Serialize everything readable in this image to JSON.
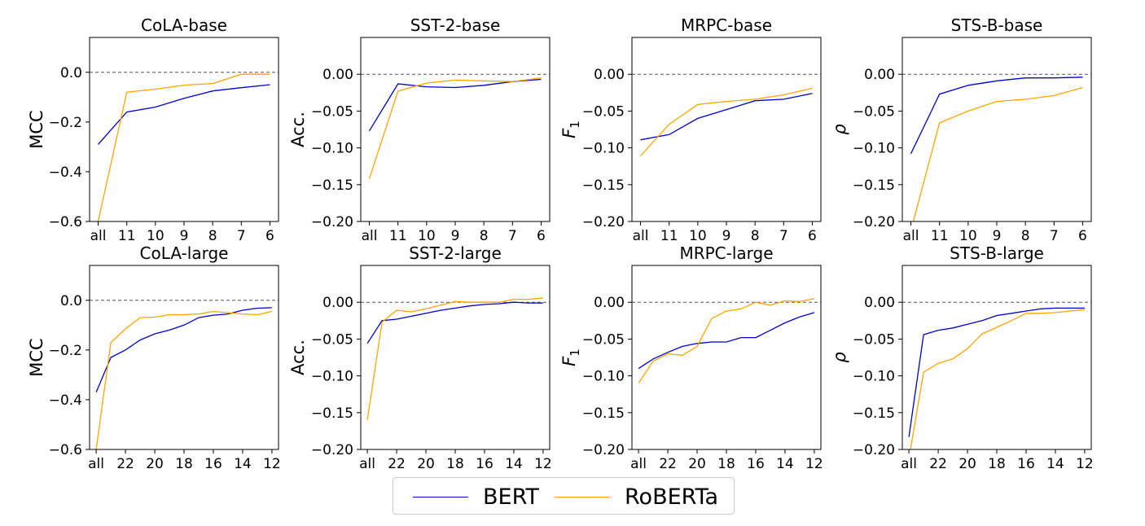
{
  "legend": {
    "entries": [
      {
        "name": "BERT",
        "color": "#0000cc"
      },
      {
        "name": "RoBERTa",
        "color": "#ffa500"
      }
    ]
  },
  "chart_data": [
    {
      "type": "line",
      "title": "CoLA-base",
      "ylabel": "MCC",
      "ylim": [
        -0.6,
        0.14
      ],
      "yticks": [
        -0.6,
        -0.4,
        -0.2,
        0.0
      ],
      "ytick_labels": [
        "−0.6",
        "−0.4",
        "−0.2",
        "0.0"
      ],
      "categories": [
        "all",
        "11",
        "10",
        "9",
        "8",
        "7",
        "6"
      ],
      "series": [
        {
          "name": "BERT",
          "values": [
            -0.29,
            -0.16,
            -0.14,
            -0.105,
            -0.075,
            -0.062,
            -0.05
          ]
        },
        {
          "name": "RoBERTa",
          "values": [
            -0.6,
            -0.08,
            -0.068,
            -0.052,
            -0.045,
            -0.008,
            -0.008
          ]
        }
      ]
    },
    {
      "type": "line",
      "title": "SST-2-base",
      "ylabel": "Acc.",
      "ylim": [
        -0.2,
        0.05
      ],
      "yticks": [
        -0.2,
        -0.15,
        -0.1,
        -0.05,
        0.0
      ],
      "ytick_labels": [
        "−0.20",
        "−0.15",
        "−0.10",
        "−0.05",
        "0.00"
      ],
      "categories": [
        "all",
        "11",
        "10",
        "9",
        "8",
        "7",
        "6"
      ],
      "series": [
        {
          "name": "BERT",
          "values": [
            -0.077,
            -0.013,
            -0.017,
            -0.018,
            -0.015,
            -0.01,
            -0.007
          ]
        },
        {
          "name": "RoBERTa",
          "values": [
            -0.142,
            -0.023,
            -0.012,
            -0.008,
            -0.009,
            -0.01,
            -0.005
          ]
        }
      ]
    },
    {
      "type": "line",
      "title": "MRPC-base",
      "ylabel": "F1",
      "ylim": [
        -0.2,
        0.05
      ],
      "yticks": [
        -0.2,
        -0.15,
        -0.1,
        -0.05,
        0.0
      ],
      "ytick_labels": [
        "−0.20",
        "−0.15",
        "−0.10",
        "−0.05",
        "0.00"
      ],
      "categories": [
        "all",
        "11",
        "10",
        "9",
        "8",
        "7",
        "6"
      ],
      "series": [
        {
          "name": "BERT",
          "values": [
            -0.089,
            -0.082,
            -0.06,
            -0.048,
            -0.036,
            -0.034,
            -0.026
          ]
        },
        {
          "name": "RoBERTa",
          "values": [
            -0.111,
            -0.068,
            -0.041,
            -0.037,
            -0.034,
            -0.028,
            -0.019
          ]
        }
      ]
    },
    {
      "type": "line",
      "title": "STS-B-base",
      "ylabel": "ρ",
      "ylim": [
        -0.2,
        0.05
      ],
      "yticks": [
        -0.2,
        -0.15,
        -0.1,
        -0.05,
        0.0
      ],
      "ytick_labels": [
        "−0.20",
        "−0.15",
        "−0.10",
        "−0.05",
        "0.00"
      ],
      "categories": [
        "all",
        "11",
        "10",
        "9",
        "8",
        "7",
        "6"
      ],
      "series": [
        {
          "name": "BERT",
          "values": [
            -0.108,
            -0.027,
            -0.015,
            -0.009,
            -0.005,
            -0.005,
            -0.004
          ]
        },
        {
          "name": "RoBERTa",
          "values": [
            -0.3,
            -0.066,
            -0.05,
            -0.037,
            -0.034,
            -0.029,
            -0.018
          ]
        }
      ]
    },
    {
      "type": "line",
      "title": "CoLA-large",
      "ylabel": "MCC",
      "ylim": [
        -0.6,
        0.14
      ],
      "yticks": [
        -0.6,
        -0.4,
        -0.2,
        0.0
      ],
      "ytick_labels": [
        "−0.6",
        "−0.4",
        "−0.2",
        "0.0"
      ],
      "x": [
        24,
        23,
        22,
        21,
        20,
        19,
        18,
        17,
        16,
        15,
        14,
        13,
        12
      ],
      "categories": [
        "all",
        "22",
        "20",
        "18",
        "16",
        "14",
        "12"
      ],
      "series": [
        {
          "name": "BERT",
          "values": [
            -0.37,
            -0.23,
            -0.2,
            -0.16,
            -0.135,
            -0.12,
            -0.1,
            -0.07,
            -0.06,
            -0.055,
            -0.04,
            -0.032,
            -0.03
          ]
        },
        {
          "name": "RoBERTa",
          "values": [
            -0.6,
            -0.17,
            -0.115,
            -0.07,
            -0.068,
            -0.058,
            -0.058,
            -0.055,
            -0.045,
            -0.05,
            -0.055,
            -0.058,
            -0.045
          ]
        }
      ]
    },
    {
      "type": "line",
      "title": "SST-2-large",
      "ylabel": "Acc.",
      "ylim": [
        -0.2,
        0.05
      ],
      "yticks": [
        -0.2,
        -0.15,
        -0.1,
        -0.05,
        0.0
      ],
      "ytick_labels": [
        "−0.20",
        "−0.15",
        "−0.10",
        "−0.05",
        "0.00"
      ],
      "x": [
        24,
        23,
        22,
        21,
        20,
        19,
        18,
        17,
        16,
        15,
        14,
        13,
        12
      ],
      "categories": [
        "all",
        "22",
        "20",
        "18",
        "16",
        "14",
        "12"
      ],
      "series": [
        {
          "name": "BERT",
          "values": [
            -0.056,
            -0.025,
            -0.023,
            -0.019,
            -0.015,
            -0.011,
            -0.008,
            -0.005,
            -0.003,
            -0.002,
            0.0,
            -0.001,
            -0.001
          ]
        },
        {
          "name": "RoBERTa",
          "values": [
            -0.16,
            -0.027,
            -0.011,
            -0.013,
            -0.009,
            -0.004,
            0.001,
            0.0,
            0.0,
            0.0,
            0.004,
            0.004,
            0.006
          ]
        }
      ]
    },
    {
      "type": "line",
      "title": "MRPC-large",
      "ylabel": "F1",
      "ylim": [
        -0.2,
        0.05
      ],
      "yticks": [
        -0.2,
        -0.15,
        -0.1,
        -0.05,
        0.0
      ],
      "ytick_labels": [
        "−0.20",
        "−0.15",
        "−0.10",
        "−0.05",
        "0.00"
      ],
      "x": [
        24,
        23,
        22,
        21,
        20,
        19,
        18,
        17,
        16,
        15,
        14,
        13,
        12
      ],
      "categories": [
        "all",
        "22",
        "20",
        "18",
        "16",
        "14",
        "12"
      ],
      "series": [
        {
          "name": "BERT",
          "values": [
            -0.09,
            -0.077,
            -0.068,
            -0.06,
            -0.056,
            -0.054,
            -0.054,
            -0.048,
            -0.048,
            -0.038,
            -0.028,
            -0.02,
            -0.014
          ]
        },
        {
          "name": "RoBERTa",
          "values": [
            -0.11,
            -0.08,
            -0.07,
            -0.072,
            -0.06,
            -0.022,
            -0.012,
            -0.009,
            0.0,
            -0.004,
            0.002,
            0.001,
            0.005
          ]
        }
      ]
    },
    {
      "type": "line",
      "title": "STS-B-large",
      "ylabel": "ρ",
      "ylim": [
        -0.2,
        0.05
      ],
      "yticks": [
        -0.2,
        -0.15,
        -0.1,
        -0.05,
        0.0
      ],
      "ytick_labels": [
        "−0.20",
        "−0.15",
        "−0.10",
        "−0.05",
        "0.00"
      ],
      "x": [
        24,
        23,
        22,
        21,
        20,
        19,
        18,
        17,
        16,
        15,
        14,
        13,
        12
      ],
      "categories": [
        "all",
        "22",
        "20",
        "18",
        "16",
        "14",
        "12"
      ],
      "series": [
        {
          "name": "BERT",
          "values": [
            -0.183,
            -0.044,
            -0.038,
            -0.035,
            -0.03,
            -0.025,
            -0.018,
            -0.015,
            -0.012,
            -0.009,
            -0.008,
            -0.008,
            -0.008
          ]
        },
        {
          "name": "RoBERTa",
          "values": [
            -0.3,
            -0.095,
            -0.083,
            -0.077,
            -0.063,
            -0.043,
            -0.034,
            -0.025,
            -0.015,
            -0.015,
            -0.014,
            -0.012,
            -0.01
          ]
        }
      ]
    }
  ]
}
